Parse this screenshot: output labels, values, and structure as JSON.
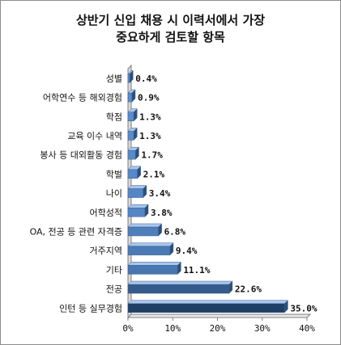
{
  "chart_data": {
    "type": "bar",
    "orientation": "horizontal",
    "title": "상반기 신입 채용 시 이력서에서 가장\n중요하게 검토할 항목",
    "categories": [
      "성별",
      "어학연수 등 해외경험",
      "학점",
      "교육 이수 내역",
      "봉사 등 대외활동 경험",
      "학벌",
      "나이",
      "어학성적",
      "OA, 전공 등 관련 자격증",
      "거주지역",
      "기타",
      "전공",
      "인턴 등 실무경험"
    ],
    "values": [
      0.4,
      0.9,
      1.3,
      1.3,
      1.7,
      2.1,
      3.4,
      3.8,
      6.8,
      9.4,
      11.1,
      22.6,
      35.0
    ],
    "value_labels": [
      "0.4%",
      "0.9%",
      "1.3%",
      "1.3%",
      "1.7%",
      "2.1%",
      "3.4%",
      "3.8%",
      "6.8%",
      "9.4%",
      "11.1%",
      "22.6%",
      "35.0%"
    ],
    "xlim": [
      0,
      40
    ],
    "x_ticks": [
      "0%",
      "10%",
      "20%",
      "30%",
      "40%"
    ],
    "grid": false,
    "legend": "none",
    "colors": {
      "bar_low": "#5b8fd0",
      "bar_high": "#1f3f66",
      "bar_top": "#a9c6ec",
      "axis": "#808080"
    }
  }
}
